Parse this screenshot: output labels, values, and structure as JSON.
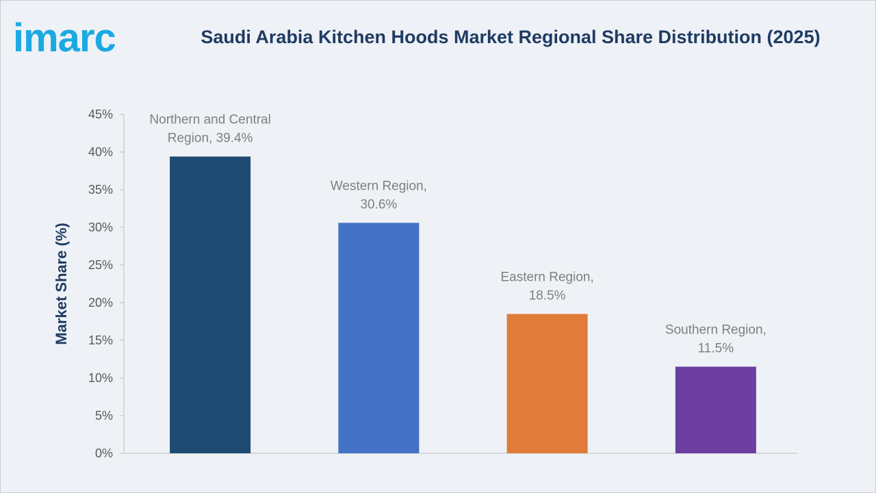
{
  "logo": {
    "text": "imarc",
    "color": "#1ba9e1"
  },
  "chart_data": {
    "type": "bar",
    "title": "Saudi Arabia Kitchen Hoods Market Regional Share Distribution (2025)",
    "ylabel": "Market Share (%)",
    "xlabel": "",
    "ylim": [
      0,
      45
    ],
    "yticks": [
      0,
      5,
      10,
      15,
      20,
      25,
      30,
      35,
      40,
      45
    ],
    "ytick_suffix": "%",
    "grid": false,
    "categories": [
      "Northern and Central Region",
      "Western Region",
      "Eastern Region",
      "Southern Region"
    ],
    "values": [
      39.4,
      30.6,
      18.5,
      11.5
    ],
    "data_labels": [
      [
        "Northern and Central",
        "Region, 39.4%"
      ],
      [
        "Western Region,",
        "30.6%"
      ],
      [
        "Eastern Region,",
        "18.5%"
      ],
      [
        "Southern Region,",
        "11.5%"
      ]
    ],
    "colors": [
      "#1f4a72",
      "#4472c4",
      "#e07b39",
      "#6c3ea0"
    ]
  }
}
